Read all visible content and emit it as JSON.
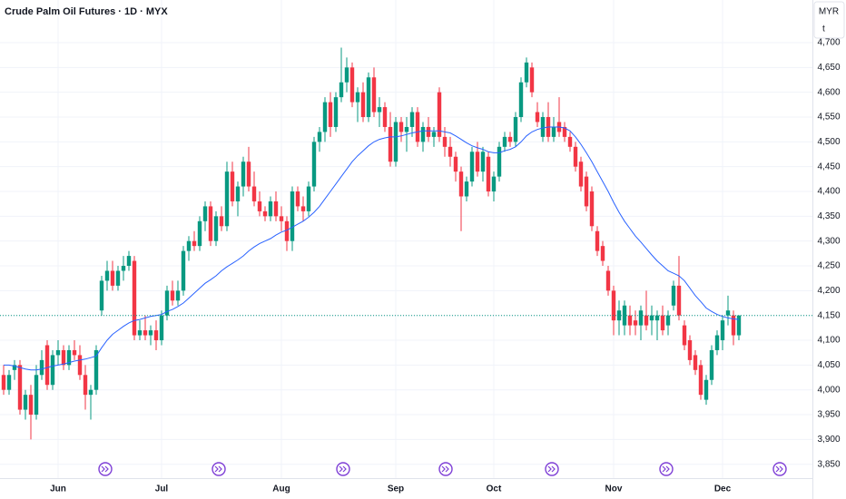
{
  "chart_data": {
    "type": "candlestick",
    "title": "Crude Palm Oil Futures · 1D · MYX",
    "currency_button": "MYR",
    "scale_button": "t",
    "up_color": "#089981",
    "down_color": "#f23645",
    "grid": true,
    "categories": [
      null,
      null,
      null,
      null,
      null,
      null,
      null,
      null,
      null,
      null,
      "Jun",
      null,
      null,
      null,
      null,
      null,
      null,
      null,
      null,
      null,
      null,
      null,
      null,
      null,
      null,
      null,
      null,
      null,
      null,
      "Jul",
      null,
      null,
      null,
      null,
      null,
      null,
      null,
      null,
      null,
      null,
      null,
      null,
      null,
      null,
      null,
      null,
      null,
      null,
      null,
      null,
      null,
      "Aug",
      null,
      null,
      null,
      null,
      null,
      null,
      null,
      null,
      null,
      null,
      null,
      null,
      null,
      null,
      null,
      null,
      null,
      null,
      null,
      null,
      "Sep",
      null,
      null,
      null,
      null,
      null,
      null,
      null,
      null,
      null,
      null,
      null,
      null,
      null,
      null,
      null,
      null,
      null,
      "Oct",
      null,
      null,
      null,
      null,
      null,
      null,
      null,
      null,
      null,
      null,
      null,
      null,
      null,
      null,
      null,
      null,
      null,
      null,
      null,
      null,
      null,
      "Nov",
      null,
      null,
      null,
      null,
      null,
      null,
      null,
      null,
      null,
      null,
      null,
      null,
      null,
      null,
      null,
      null,
      null,
      null,
      null,
      "Dec",
      null,
      null,
      null
    ],
    "open": [
      4030,
      4000,
      4040,
      4050,
      3960,
      3990,
      3950,
      4030,
      4090,
      4010,
      4070,
      4080,
      4050,
      4080,
      4070,
      4030,
      3990,
      4000,
      4160,
      4220,
      4240,
      4210,
      4240,
      4250,
      4260,
      4110,
      4120,
      4110,
      4120,
      4100,
      4150,
      4200,
      4180,
      4200,
      4280,
      4300,
      4290,
      4340,
      4370,
      4300,
      4350,
      4330,
      4440,
      4380,
      4410,
      4460,
      4410,
      4380,
      4360,
      4350,
      4380,
      4350,
      4340,
      4300,
      4400,
      4370,
      4360,
      4410,
      4500,
      4520,
      4580,
      4530,
      4590,
      4620,
      4650,
      4580,
      4600,
      4550,
      4630,
      4560,
      4570,
      4530,
      4460,
      4540,
      4520,
      4530,
      4560,
      4500,
      4530,
      4510,
      4600,
      4510,
      4490,
      4470,
      4440,
      4390,
      4420,
      4480,
      4440,
      4470,
      4400,
      4430,
      4490,
      4510,
      4500,
      4550,
      4620,
      4650,
      4560,
      4510,
      4550,
      4510,
      4540,
      4530,
      4510,
      4490,
      4460,
      4430,
      4400,
      4320,
      4290,
      4240,
      4200,
      4140,
      4130,
      4150,
      4140,
      4130,
      4150,
      4140,
      4140,
      4150,
      4130,
      4170,
      4210,
      4130,
      4100,
      4070,
      4050,
      3980,
      4020,
      4080,
      4100,
      4150,
      4150,
      4110
    ],
    "high": [
      4050,
      4040,
      4060,
      4060,
      4000,
      4010,
      4050,
      4080,
      4100,
      4080,
      4100,
      4090,
      4090,
      4100,
      4090,
      4050,
      4010,
      4090,
      4230,
      4260,
      4260,
      4250,
      4270,
      4280,
      4270,
      4140,
      4150,
      4130,
      4140,
      4160,
      4210,
      4220,
      4220,
      4290,
      4310,
      4320,
      4350,
      4380,
      4380,
      4360,
      4370,
      4460,
      4460,
      4420,
      4470,
      4490,
      4440,
      4400,
      4370,
      4390,
      4400,
      4370,
      4350,
      4410,
      4410,
      4390,
      4420,
      4510,
      4530,
      4590,
      4600,
      4600,
      4690,
      4670,
      4660,
      4610,
      4620,
      4640,
      4650,
      4590,
      4580,
      4560,
      4550,
      4550,
      4550,
      4570,
      4570,
      4540,
      4550,
      4530,
      4610,
      4530,
      4510,
      4480,
      4450,
      4430,
      4490,
      4500,
      4490,
      4480,
      4440,
      4500,
      4520,
      4520,
      4560,
      4630,
      4670,
      4660,
      4580,
      4560,
      4580,
      4550,
      4590,
      4540,
      4520,
      4500,
      4470,
      4440,
      4410,
      4330,
      4300,
      4250,
      4210,
      4180,
      4180,
      4170,
      4160,
      4170,
      4200,
      4170,
      4160,
      4170,
      4160,
      4220,
      4270,
      4140,
      4110,
      4080,
      4060,
      4030,
      4090,
      4120,
      4150,
      4190,
      4160,
      4150
    ],
    "low": [
      3990,
      3990,
      4020,
      3950,
      3940,
      3900,
      3940,
      4020,
      4000,
      4000,
      4050,
      4040,
      4040,
      4060,
      4020,
      3960,
      3940,
      3990,
      4150,
      4200,
      4200,
      4200,
      4220,
      4240,
      4100,
      4100,
      4100,
      4090,
      4080,
      4090,
      4140,
      4170,
      4170,
      4190,
      4260,
      4280,
      4280,
      4320,
      4290,
      4290,
      4320,
      4320,
      4370,
      4350,
      4390,
      4400,
      4370,
      4350,
      4340,
      4340,
      4340,
      4320,
      4280,
      4280,
      4360,
      4340,
      4350,
      4400,
      4480,
      4500,
      4510,
      4520,
      4580,
      4600,
      4570,
      4540,
      4540,
      4540,
      4550,
      4530,
      4520,
      4450,
      4450,
      4500,
      4480,
      4510,
      4490,
      4480,
      4500,
      4490,
      4500,
      4470,
      4450,
      4420,
      4320,
      4380,
      4410,
      4430,
      4420,
      4390,
      4380,
      4420,
      4480,
      4490,
      4490,
      4540,
      4610,
      4590,
      4530,
      4500,
      4500,
      4500,
      4510,
      4500,
      4480,
      4440,
      4400,
      4360,
      4320,
      4270,
      4250,
      4190,
      4110,
      4110,
      4110,
      4110,
      4110,
      4100,
      4120,
      4110,
      4100,
      4110,
      4110,
      4160,
      4140,
      4080,
      4050,
      4030,
      3980,
      3970,
      4010,
      4070,
      4080,
      4130,
      4090,
      4100
    ],
    "close": [
      4000,
      4030,
      4050,
      3960,
      3990,
      3950,
      4030,
      4060,
      4010,
      4070,
      4080,
      4050,
      4080,
      4070,
      4030,
      3990,
      4000,
      4080,
      4220,
      4240,
      4210,
      4240,
      4250,
      4270,
      4110,
      4120,
      4110,
      4120,
      4100,
      4150,
      4200,
      4180,
      4200,
      4280,
      4300,
      4290,
      4340,
      4370,
      4300,
      4350,
      4330,
      4440,
      4380,
      4410,
      4460,
      4410,
      4380,
      4360,
      4350,
      4380,
      4350,
      4340,
      4300,
      4400,
      4370,
      4360,
      4410,
      4500,
      4520,
      4580,
      4530,
      4590,
      4620,
      4650,
      4580,
      4600,
      4550,
      4630,
      4560,
      4570,
      4530,
      4460,
      4540,
      4520,
      4530,
      4560,
      4500,
      4530,
      4510,
      4520,
      4510,
      4490,
      4470,
      4440,
      4390,
      4420,
      4480,
      4440,
      4480,
      4400,
      4430,
      4490,
      4510,
      4500,
      4550,
      4620,
      4660,
      4600,
      4540,
      4550,
      4510,
      4530,
      4520,
      4510,
      4490,
      4450,
      4410,
      4370,
      4330,
      4280,
      4260,
      4200,
      4140,
      4160,
      4170,
      4130,
      4130,
      4160,
      4130,
      4150,
      4150,
      4120,
      4150,
      4210,
      4150,
      4090,
      4060,
      4040,
      3990,
      4020,
      4080,
      4110,
      4140,
      4160,
      4110,
      4150
    ],
    "moving_average": {
      "color": "#2962ff",
      "values": [
        4050,
        4050,
        4048,
        4045,
        4042,
        4040,
        4040,
        4042,
        4045,
        4048,
        4050,
        4052,
        4055,
        4058,
        4060,
        4062,
        4065,
        4068,
        4085,
        4100,
        4112,
        4120,
        4128,
        4135,
        4140,
        4142,
        4145,
        4148,
        4150,
        4152,
        4158,
        4162,
        4168,
        4175,
        4185,
        4195,
        4205,
        4215,
        4222,
        4230,
        4240,
        4248,
        4255,
        4262,
        4270,
        4280,
        4288,
        4295,
        4300,
        4305,
        4312,
        4318,
        4322,
        4328,
        4334,
        4340,
        4348,
        4358,
        4370,
        4385,
        4400,
        4415,
        4430,
        4445,
        4460,
        4472,
        4482,
        4492,
        4500,
        4505,
        4508,
        4510,
        4510,
        4512,
        4515,
        4518,
        4520,
        4522,
        4522,
        4522,
        4522,
        4520,
        4518,
        4512,
        4505,
        4498,
        4492,
        4488,
        4485,
        4480,
        4478,
        4478,
        4482,
        4485,
        4490,
        4500,
        4512,
        4520,
        4525,
        4528,
        4530,
        4530,
        4530,
        4528,
        4522,
        4510,
        4495,
        4478,
        4460,
        4440,
        4420,
        4400,
        4378,
        4358,
        4340,
        4325,
        4310,
        4298,
        4285,
        4272,
        4260,
        4250,
        4240,
        4235,
        4230,
        4220,
        4205,
        4190,
        4178,
        4165,
        4158,
        4152,
        4148,
        4145,
        4143,
        4142
      ]
    },
    "ylim": [
      3822,
      4786
    ],
    "yticks": [
      {
        "value": 3850,
        "label": "3,850"
      },
      {
        "value": 3900,
        "label": "3,900"
      },
      {
        "value": 3950,
        "label": "3,950"
      },
      {
        "value": 4000,
        "label": "4,000"
      },
      {
        "value": 4050,
        "label": "4,050"
      },
      {
        "value": 4100,
        "label": "4,100"
      },
      {
        "value": 4150,
        "label": "4,150"
      },
      {
        "value": 4200,
        "label": "4,200"
      },
      {
        "value": 4250,
        "label": "4,250"
      },
      {
        "value": 4300,
        "label": "4,300"
      },
      {
        "value": 4350,
        "label": "4,350"
      },
      {
        "value": 4400,
        "label": "4,400"
      },
      {
        "value": 4450,
        "label": "4,450"
      },
      {
        "value": 4500,
        "label": "4,500"
      },
      {
        "value": 4550,
        "label": "4,550"
      },
      {
        "value": 4600,
        "label": "4,600"
      },
      {
        "value": 4650,
        "label": "4,650"
      },
      {
        "value": 4700,
        "label": "4,700"
      }
    ]
  }
}
